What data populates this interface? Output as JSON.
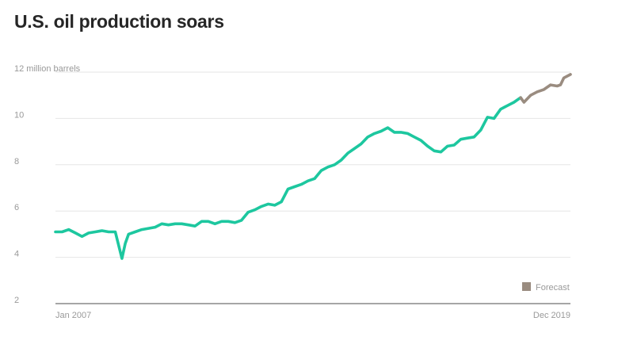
{
  "chart_data": {
    "type": "line",
    "title": "U.S. oil production soars",
    "y_unit": "million barrels",
    "yticks": [
      {
        "value": 12,
        "label": "12 million barrels"
      },
      {
        "value": 10,
        "label": "10"
      },
      {
        "value": 8,
        "label": "8"
      },
      {
        "value": 6,
        "label": "6"
      },
      {
        "value": 4,
        "label": "4"
      },
      {
        "value": 2,
        "label": "2"
      }
    ],
    "ylim": [
      2,
      12
    ],
    "xlim": [
      "2007-01",
      "2019-12"
    ],
    "x_labels": [
      {
        "date": "2007-01",
        "label": "Jan 2007"
      },
      {
        "date": "2019-12",
        "label": "Dec 2019"
      }
    ],
    "grid": true,
    "legend": {
      "position": "bottom-right",
      "entries": [
        {
          "name": "Forecast",
          "color": "#9a8c80"
        }
      ]
    },
    "colors": {
      "actual": "#1dc79f",
      "forecast": "#9a8c80",
      "grid": "#e6e6e6",
      "axis": "#888888",
      "text": "#999999"
    },
    "series": [
      {
        "style": "actual",
        "points": [
          [
            "2007-01",
            5.1
          ],
          [
            "2007-03",
            5.1
          ],
          [
            "2007-05",
            5.2
          ],
          [
            "2007-07",
            5.05
          ],
          [
            "2007-09",
            4.9
          ],
          [
            "2007-11",
            5.05
          ],
          [
            "2008-01",
            5.1
          ],
          [
            "2008-03",
            5.15
          ],
          [
            "2008-05",
            5.1
          ],
          [
            "2008-07",
            5.1
          ],
          [
            "2008-09",
            3.95
          ],
          [
            "2008-10",
            4.6
          ],
          [
            "2008-11",
            5.0
          ],
          [
            "2009-01",
            5.1
          ],
          [
            "2009-03",
            5.2
          ],
          [
            "2009-05",
            5.25
          ],
          [
            "2009-07",
            5.3
          ],
          [
            "2009-09",
            5.45
          ],
          [
            "2009-11",
            5.4
          ],
          [
            "2010-01",
            5.45
          ],
          [
            "2010-03",
            5.45
          ],
          [
            "2010-05",
            5.4
          ],
          [
            "2010-07",
            5.35
          ],
          [
            "2010-09",
            5.55
          ],
          [
            "2010-11",
            5.55
          ],
          [
            "2011-01",
            5.45
          ],
          [
            "2011-03",
            5.55
          ],
          [
            "2011-05",
            5.55
          ],
          [
            "2011-07",
            5.5
          ],
          [
            "2011-09",
            5.6
          ],
          [
            "2011-11",
            5.95
          ],
          [
            "2012-01",
            6.05
          ],
          [
            "2012-03",
            6.2
          ],
          [
            "2012-05",
            6.3
          ],
          [
            "2012-07",
            6.25
          ],
          [
            "2012-09",
            6.4
          ],
          [
            "2012-11",
            6.95
          ],
          [
            "2013-01",
            7.05
          ],
          [
            "2013-03",
            7.15
          ],
          [
            "2013-05",
            7.3
          ],
          [
            "2013-07",
            7.4
          ],
          [
            "2013-09",
            7.75
          ],
          [
            "2013-11",
            7.9
          ],
          [
            "2014-01",
            8.0
          ],
          [
            "2014-03",
            8.2
          ],
          [
            "2014-05",
            8.5
          ],
          [
            "2014-07",
            8.7
          ],
          [
            "2014-09",
            8.9
          ],
          [
            "2014-11",
            9.2
          ],
          [
            "2015-01",
            9.35
          ],
          [
            "2015-03",
            9.45
          ],
          [
            "2015-05",
            9.6
          ],
          [
            "2015-07",
            9.4
          ],
          [
            "2015-09",
            9.4
          ],
          [
            "2015-11",
            9.35
          ],
          [
            "2016-01",
            9.2
          ],
          [
            "2016-03",
            9.05
          ],
          [
            "2016-05",
            8.8
          ],
          [
            "2016-07",
            8.6
          ],
          [
            "2016-09",
            8.55
          ],
          [
            "2016-11",
            8.8
          ],
          [
            "2017-01",
            8.85
          ],
          [
            "2017-03",
            9.1
          ],
          [
            "2017-05",
            9.15
          ],
          [
            "2017-07",
            9.2
          ],
          [
            "2017-09",
            9.5
          ],
          [
            "2017-11",
            10.05
          ],
          [
            "2018-01",
            10.0
          ],
          [
            "2018-03",
            10.4
          ],
          [
            "2018-05",
            10.55
          ],
          [
            "2018-07",
            10.7
          ],
          [
            "2018-09",
            10.9
          ]
        ]
      },
      {
        "style": "forecast",
        "points": [
          [
            "2018-09",
            10.9
          ],
          [
            "2018-10",
            10.7
          ],
          [
            "2018-12",
            11.0
          ],
          [
            "2019-02",
            11.15
          ],
          [
            "2019-04",
            11.25
          ],
          [
            "2019-06",
            11.45
          ],
          [
            "2019-08",
            11.4
          ],
          [
            "2019-09",
            11.45
          ],
          [
            "2019-10",
            11.75
          ],
          [
            "2019-12",
            11.9
          ]
        ]
      }
    ]
  }
}
